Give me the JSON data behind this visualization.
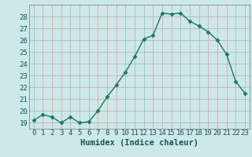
{
  "x": [
    0,
    1,
    2,
    3,
    4,
    5,
    6,
    7,
    8,
    9,
    10,
    11,
    12,
    13,
    14,
    15,
    16,
    17,
    18,
    19,
    20,
    21,
    22,
    23
  ],
  "y": [
    19.2,
    19.7,
    19.5,
    19.0,
    19.5,
    19.0,
    19.1,
    20.0,
    21.2,
    22.2,
    23.3,
    24.6,
    26.1,
    26.4,
    28.3,
    28.2,
    28.3,
    27.6,
    27.2,
    26.7,
    26.0,
    24.8,
    22.5,
    21.5
  ],
  "line_color": "#1a7a5e",
  "marker": "D",
  "marker_size": 2.5,
  "bg_color": "#cce8e8",
  "grid_color": "#c0a8a8",
  "xlabel": "Humidex (Indice chaleur)",
  "xlim": [
    -0.5,
    23.5
  ],
  "ylim": [
    18.5,
    29.0
  ],
  "yticks": [
    19,
    20,
    21,
    22,
    23,
    24,
    25,
    26,
    27,
    28
  ],
  "xticks": [
    0,
    1,
    2,
    3,
    4,
    5,
    6,
    7,
    8,
    9,
    10,
    11,
    12,
    13,
    14,
    15,
    16,
    17,
    18,
    19,
    20,
    21,
    22,
    23
  ],
  "xlabel_fontsize": 7.5,
  "tick_fontsize": 6.5,
  "linewidth": 1.0
}
